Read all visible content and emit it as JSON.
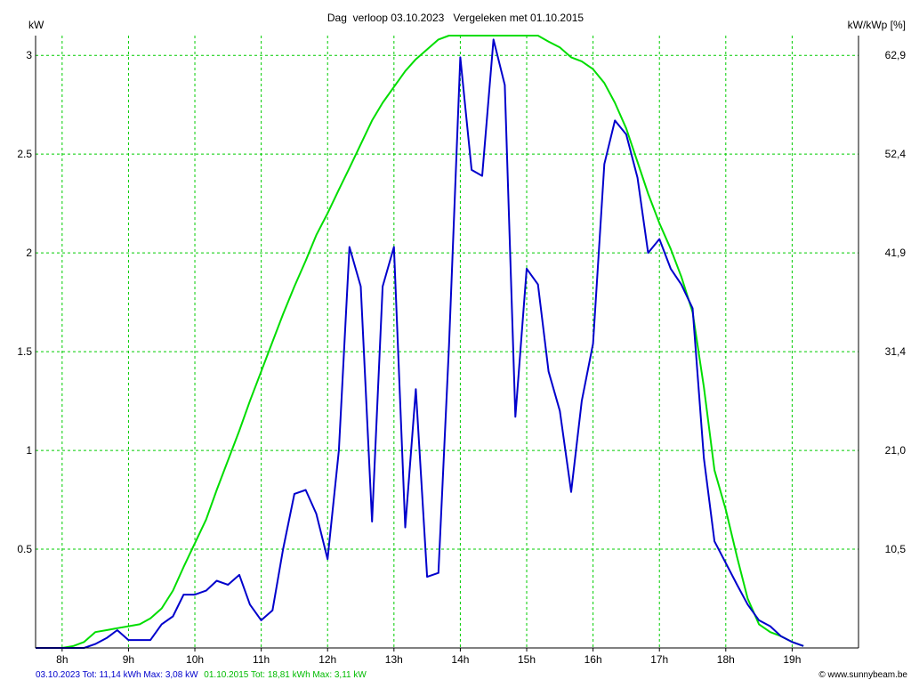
{
  "chart_data": {
    "type": "line",
    "title": "Dag  verloop 03.10.2023   Vergeleken met 01.10.2015",
    "ylabel_left": "kW",
    "ylabel_right": "kW/kWp [%]",
    "x_unit": "hour",
    "xlim": [
      7.6,
      20.0
    ],
    "ylim": [
      0,
      3.1
    ],
    "x_ticks": [
      8,
      9,
      10,
      11,
      12,
      13,
      14,
      15,
      16,
      17,
      18,
      19
    ],
    "x_tick_labels": [
      "8h",
      "9h",
      "10h",
      "11h",
      "12h",
      "13h",
      "14h",
      "15h",
      "16h",
      "17h",
      "18h",
      "19h"
    ],
    "y_ticks": [
      0.5,
      1,
      1.5,
      2,
      2.5,
      3
    ],
    "y_tick_labels": [
      "0.5",
      "1",
      "1.5",
      "2",
      "2.5",
      "3"
    ],
    "y_right_tick_labels": [
      "10,5",
      "21,0",
      "31,4",
      "41,9",
      "52,4",
      "62,9"
    ],
    "grid": true,
    "series": [
      {
        "name": "03.10.2023",
        "color": "#0000cc",
        "x": [
          7.6,
          8.0,
          8.33,
          8.5,
          8.67,
          8.83,
          9.0,
          9.17,
          9.33,
          9.5,
          9.67,
          9.83,
          10.0,
          10.17,
          10.33,
          10.5,
          10.67,
          10.83,
          11.0,
          11.17,
          11.33,
          11.5,
          11.67,
          11.83,
          12.0,
          12.17,
          12.33,
          12.5,
          12.67,
          12.83,
          13.0,
          13.17,
          13.33,
          13.5,
          13.67,
          13.83,
          14.0,
          14.17,
          14.33,
          14.5,
          14.67,
          14.83,
          15.0,
          15.17,
          15.33,
          15.5,
          15.67,
          15.83,
          16.0,
          16.17,
          16.33,
          16.5,
          16.67,
          16.83,
          17.0,
          17.17,
          17.33,
          17.5,
          17.67,
          17.83,
          18.0,
          18.17,
          18.33,
          18.5,
          18.67,
          18.83,
          19.0,
          19.17
        ],
        "values": [
          0.0,
          0.0,
          0.0,
          0.02,
          0.05,
          0.09,
          0.04,
          0.04,
          0.04,
          0.12,
          0.16,
          0.27,
          0.27,
          0.29,
          0.34,
          0.32,
          0.37,
          0.22,
          0.14,
          0.19,
          0.5,
          0.78,
          0.8,
          0.68,
          0.45,
          1.0,
          2.03,
          1.83,
          0.64,
          1.83,
          2.03,
          0.61,
          1.31,
          0.36,
          0.38,
          1.53,
          2.99,
          2.42,
          2.39,
          3.08,
          2.85,
          1.17,
          1.92,
          1.84,
          1.4,
          1.2,
          0.79,
          1.25,
          1.54,
          2.45,
          2.67,
          2.6,
          2.38,
          2.0,
          2.07,
          1.92,
          1.84,
          1.72,
          0.96,
          0.54,
          0.43,
          0.32,
          0.22,
          0.14,
          0.11,
          0.06,
          0.03,
          0.01
        ]
      },
      {
        "name": "01.10.2015",
        "color": "#00dd00",
        "x": [
          7.6,
          8.0,
          8.17,
          8.33,
          8.5,
          8.67,
          8.83,
          9.0,
          9.17,
          9.33,
          9.5,
          9.67,
          9.83,
          10.0,
          10.17,
          10.33,
          10.5,
          10.67,
          10.83,
          11.0,
          11.17,
          11.33,
          11.5,
          11.67,
          11.83,
          12.0,
          12.17,
          12.33,
          12.5,
          12.67,
          12.83,
          13.0,
          13.17,
          13.33,
          13.5,
          13.67,
          13.83,
          14.0,
          14.17,
          14.33,
          14.5,
          14.67,
          14.83,
          15.0,
          15.17,
          15.33,
          15.5,
          15.67,
          15.83,
          16.0,
          16.17,
          16.33,
          16.5,
          16.67,
          16.83,
          17.0,
          17.17,
          17.33,
          17.5,
          17.67,
          17.83,
          18.0,
          18.17,
          18.33,
          18.5,
          18.67,
          18.83,
          19.0,
          19.17
        ],
        "values": [
          0.0,
          0.0,
          0.01,
          0.03,
          0.08,
          0.09,
          0.1,
          0.11,
          0.12,
          0.15,
          0.2,
          0.29,
          0.41,
          0.53,
          0.65,
          0.8,
          0.95,
          1.1,
          1.25,
          1.4,
          1.55,
          1.69,
          1.83,
          1.96,
          2.09,
          2.2,
          2.32,
          2.43,
          2.55,
          2.67,
          2.76,
          2.84,
          2.92,
          2.98,
          3.03,
          3.08,
          3.12,
          3.12,
          3.14,
          3.16,
          3.16,
          3.16,
          3.16,
          3.14,
          3.1,
          3.07,
          3.04,
          2.99,
          2.97,
          2.93,
          2.86,
          2.76,
          2.63,
          2.46,
          2.3,
          2.15,
          2.02,
          1.88,
          1.7,
          1.32,
          0.9,
          0.7,
          0.46,
          0.25,
          0.12,
          0.08,
          0.06,
          0.03,
          0.01
        ]
      }
    ],
    "footer": {
      "blue_text": "03.10.2023 Tot: 11,14 kWh Max: 3,08 kW",
      "green_text": "01.10.2015 Tot: 18,81 kWh Max: 3,11 kW",
      "credit": "© www.sunnybeam.be"
    }
  }
}
